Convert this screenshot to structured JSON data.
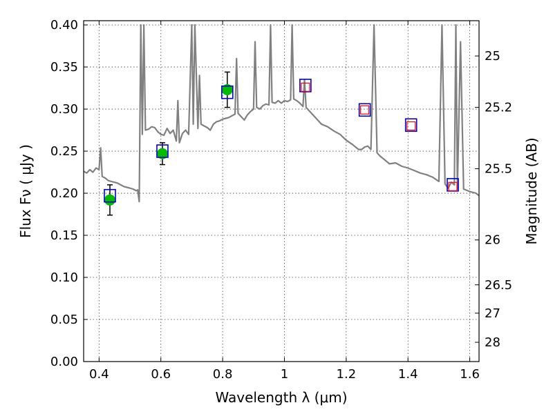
{
  "chart_data": {
    "type": "scatter",
    "title": "",
    "xlabel": "Wavelength  λ (μm)",
    "ylabel": "Flux  Fν  ( μJy )",
    "ylabel_right": "Magnitude (AB)",
    "xlim": [
      0.35,
      1.63
    ],
    "ylim": [
      0.0,
      0.405
    ],
    "grid": true,
    "x_ticks": [
      0.4,
      0.6,
      0.8,
      1.0,
      1.2,
      1.4,
      1.6
    ],
    "x_tick_labels": [
      "0.4",
      "0.6",
      "0.8",
      "1",
      "1.2",
      "1.4",
      "1.6"
    ],
    "y_ticks": [
      0.0,
      0.05,
      0.1,
      0.15,
      0.2,
      0.25,
      0.3,
      0.35,
      0.4
    ],
    "y_tick_labels": [
      "0.00",
      "0.05",
      "0.10",
      "0.15",
      "0.20",
      "0.25",
      "0.30",
      "0.35",
      "0.40"
    ],
    "right_ticks": [
      {
        "label": "25",
        "flux": 0.3631
      },
      {
        "label": "25.2",
        "flux": 0.302
      },
      {
        "label": "25.5",
        "flux": 0.2291
      },
      {
        "label": "26",
        "flux": 0.1445
      },
      {
        "label": "26.5",
        "flux": 0.0912
      },
      {
        "label": "27",
        "flux": 0.0575
      },
      {
        "label": "28",
        "flux": 0.0229
      }
    ],
    "series": [
      {
        "kind": "line",
        "color": "#808080",
        "x": [
          0.35,
          0.36,
          0.37,
          0.38,
          0.39,
          0.4,
          0.405,
          0.41,
          0.42,
          0.43,
          0.44,
          0.45,
          0.46,
          0.47,
          0.48,
          0.49,
          0.5,
          0.51,
          0.52,
          0.525,
          0.53,
          0.535,
          0.54,
          0.545,
          0.55,
          0.56,
          0.57,
          0.58,
          0.59,
          0.6,
          0.61,
          0.62,
          0.63,
          0.64,
          0.65,
          0.655,
          0.66,
          0.67,
          0.68,
          0.69,
          0.7,
          0.705,
          0.71,
          0.72,
          0.725,
          0.73,
          0.74,
          0.75,
          0.76,
          0.77,
          0.78,
          0.79,
          0.8,
          0.81,
          0.82,
          0.83,
          0.84,
          0.845,
          0.85,
          0.86,
          0.87,
          0.88,
          0.89,
          0.9,
          0.905,
          0.91,
          0.92,
          0.93,
          0.94,
          0.95,
          0.955,
          0.96,
          0.97,
          0.98,
          0.99,
          1.0,
          1.01,
          1.02,
          1.025,
          1.03,
          1.04,
          1.05,
          1.06,
          1.065,
          1.07,
          1.08,
          1.09,
          1.1,
          1.12,
          1.14,
          1.16,
          1.18,
          1.2,
          1.22,
          1.24,
          1.25,
          1.26,
          1.27,
          1.28,
          1.29,
          1.3,
          1.31,
          1.32,
          1.34,
          1.36,
          1.38,
          1.4,
          1.42,
          1.44,
          1.46,
          1.48,
          1.5,
          1.51,
          1.52,
          1.53,
          1.54,
          1.55,
          1.555,
          1.56,
          1.57,
          1.58,
          1.6,
          1.62,
          1.63
        ],
        "y": [
          0.226,
          0.224,
          0.228,
          0.225,
          0.23,
          0.228,
          0.254,
          0.22,
          0.218,
          0.215,
          0.214,
          0.213,
          0.212,
          0.21,
          0.208,
          0.207,
          0.206,
          0.205,
          0.203,
          0.204,
          0.19,
          0.4,
          0.27,
          0.4,
          0.275,
          0.276,
          0.279,
          0.278,
          0.273,
          0.27,
          0.269,
          0.277,
          0.271,
          0.275,
          0.262,
          0.31,
          0.26,
          0.271,
          0.275,
          0.27,
          0.4,
          0.282,
          0.4,
          0.277,
          0.34,
          0.282,
          0.28,
          0.278,
          0.275,
          0.282,
          0.285,
          0.286,
          0.288,
          0.289,
          0.29,
          0.292,
          0.294,
          0.36,
          0.295,
          0.291,
          0.287,
          0.293,
          0.297,
          0.3,
          0.38,
          0.302,
          0.3,
          0.304,
          0.306,
          0.305,
          0.4,
          0.308,
          0.307,
          0.31,
          0.307,
          0.31,
          0.309,
          0.311,
          0.4,
          0.312,
          0.31,
          0.307,
          0.303,
          0.335,
          0.302,
          0.298,
          0.294,
          0.29,
          0.282,
          0.279,
          0.274,
          0.27,
          0.263,
          0.258,
          0.252,
          0.252,
          0.255,
          0.256,
          0.252,
          0.4,
          0.248,
          0.244,
          0.241,
          0.235,
          0.236,
          0.232,
          0.23,
          0.227,
          0.224,
          0.222,
          0.219,
          0.214,
          0.4,
          0.211,
          0.206,
          0.213,
          0.21,
          0.4,
          0.205,
          0.38,
          0.205,
          0.202,
          0.2,
          0.197
        ]
      },
      {
        "kind": "points",
        "name": "",
        "marker": "circle",
        "color": "#00bb00",
        "x": [
          0.435,
          0.605,
          0.815
        ],
        "y": [
          0.192,
          0.247,
          0.323
        ],
        "yerr": [
          0.018,
          0.013,
          0.021
        ]
      },
      {
        "kind": "points",
        "name": "",
        "marker": "open-square",
        "color": "#0000cc",
        "x": [
          0.435,
          0.605,
          0.815,
          1.068,
          1.26,
          1.41,
          1.545
        ],
        "y": [
          0.197,
          0.25,
          0.32,
          0.328,
          0.299,
          0.281,
          0.21
        ]
      },
      {
        "kind": "points",
        "name": "",
        "marker": "small-open-square",
        "color": "#ff0000",
        "x": [
          1.068,
          1.26,
          1.41,
          1.545
        ],
        "y": [
          0.326,
          0.299,
          0.28,
          0.208
        ]
      }
    ]
  }
}
